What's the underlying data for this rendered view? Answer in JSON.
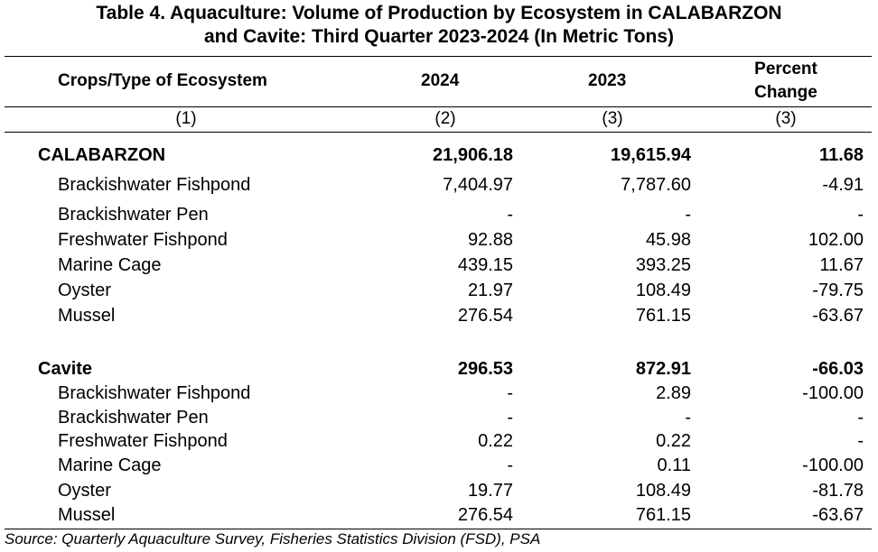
{
  "title": {
    "line1": "Table 4. Aquaculture: Volume of Production by Ecosystem in CALABARZON",
    "line2": "and Cavite: Third Quarter 2023-2024 (In Metric Tons)"
  },
  "headers": {
    "crops": "Crops/Type of Ecosystem",
    "y2024": "2024",
    "y2023": "2023",
    "pct_line1": "Percent",
    "pct_line2": "Change"
  },
  "col_numbers": [
    "(1)",
    "(2)",
    "(3)",
    "(3)"
  ],
  "rows": [
    {
      "label": "CALABARZON",
      "v2024": "21,906.18",
      "v2023": "19,615.94",
      "pct": "11.68",
      "bold": true
    },
    {
      "label": "Brackishwater Fishpond",
      "v2024": "7,404.97",
      "v2023": "7,787.60",
      "pct": "-4.91"
    },
    {
      "label": "Brackishwater Pen",
      "v2024": "-",
      "v2023": "-",
      "pct": "-"
    },
    {
      "label": "Freshwater Fishpond",
      "v2024": "92.88",
      "v2023": "45.98",
      "pct": "102.00"
    },
    {
      "label": "Marine Cage",
      "v2024": "439.15",
      "v2023": "393.25",
      "pct": "11.67"
    },
    {
      "label": "Oyster",
      "v2024": "21.97",
      "v2023": "108.49",
      "pct": "-79.75"
    },
    {
      "label": "Mussel",
      "v2024": "276.54",
      "v2023": "761.15",
      "pct": "-63.67"
    },
    {
      "label": "Cavite",
      "v2024": "296.53",
      "v2023": "872.91",
      "pct": "-66.03",
      "bold": true
    },
    {
      "label": "Brackishwater Fishpond",
      "v2024": "-",
      "v2023": "2.89",
      "pct": "-100.00"
    },
    {
      "label": "Brackishwater Pen",
      "v2024": "-",
      "v2023": "-",
      "pct": "-"
    },
    {
      "label": "Freshwater Fishpond",
      "v2024": "0.22",
      "v2023": "0.22",
      "pct": "-"
    },
    {
      "label": "Marine Cage",
      "v2024": "-",
      "v2023": "0.11",
      "pct": "-100.00"
    },
    {
      "label": "Oyster",
      "v2024": "19.77",
      "v2023": "108.49",
      "pct": "-81.78"
    },
    {
      "label": "Mussel",
      "v2024": "276.54",
      "v2023": "761.15",
      "pct": "-63.67"
    }
  ],
  "source": "Source: Quarterly Aquaculture Survey, Fisheries Statistics Division (FSD), PSA"
}
